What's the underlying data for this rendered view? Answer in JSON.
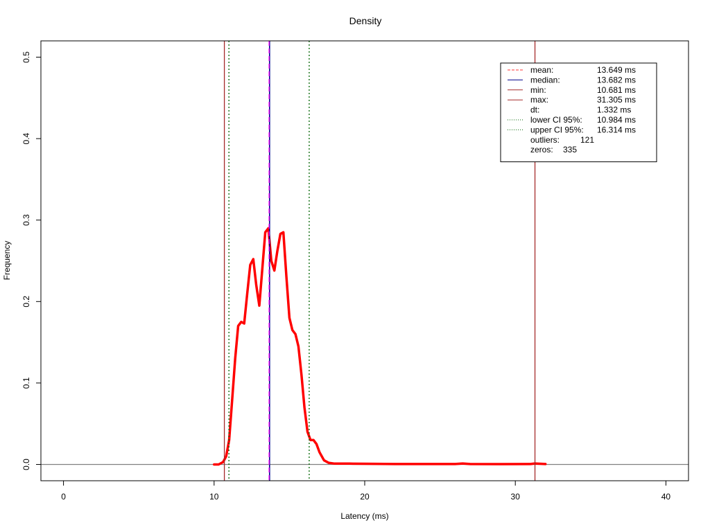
{
  "chart_data": {
    "type": "line",
    "title": "Density",
    "xlabel": "Latency (ms)",
    "ylabel": "Frequency",
    "xlim": [
      -1.5,
      41.5
    ],
    "ylim": [
      -0.02,
      0.52
    ],
    "x_ticks": [
      0,
      10,
      20,
      30,
      40
    ],
    "y_ticks": [
      0.0,
      0.1,
      0.2,
      0.3,
      0.4,
      0.5
    ],
    "x_tick_labels": [
      "0",
      "10",
      "20",
      "30",
      "40"
    ],
    "y_tick_labels": [
      "0.0",
      "0.1",
      "0.2",
      "0.3",
      "0.4",
      "0.5"
    ],
    "grid": false,
    "baseline": 0,
    "density": {
      "color": "#ff0000",
      "x": [
        10.0,
        10.3,
        10.6,
        10.8,
        11.0,
        11.2,
        11.4,
        11.6,
        11.8,
        12.0,
        12.2,
        12.4,
        12.6,
        12.8,
        13.0,
        13.2,
        13.4,
        13.6,
        13.8,
        14.0,
        14.2,
        14.4,
        14.6,
        14.8,
        15.0,
        15.2,
        15.4,
        15.6,
        15.8,
        16.0,
        16.2,
        16.4,
        16.6,
        16.8,
        17.0,
        17.3,
        17.6,
        18.0,
        18.5,
        19.0,
        20.0,
        22.0,
        24.0,
        26.0,
        26.5,
        27.0,
        29.0,
        31.0,
        31.3,
        32.0
      ],
      "y": [
        0.0,
        0.0,
        0.003,
        0.01,
        0.03,
        0.08,
        0.13,
        0.17,
        0.175,
        0.173,
        0.21,
        0.245,
        0.252,
        0.22,
        0.195,
        0.24,
        0.285,
        0.29,
        0.25,
        0.238,
        0.262,
        0.283,
        0.285,
        0.23,
        0.18,
        0.165,
        0.16,
        0.145,
        0.11,
        0.07,
        0.04,
        0.03,
        0.03,
        0.025,
        0.015,
        0.005,
        0.002,
        0.001,
        0.001,
        0.001,
        0.0008,
        0.0005,
        0.0005,
        0.0005,
        0.0012,
        0.0005,
        0.0004,
        0.0005,
        0.0012,
        0.0005
      ]
    },
    "vlines": [
      {
        "name": "min",
        "x": 10.681,
        "color": "#a52a2a",
        "dash": "solid"
      },
      {
        "name": "max",
        "x": 31.305,
        "color": "#a52a2a",
        "dash": "solid"
      },
      {
        "name": "median",
        "x": 13.682,
        "color": "#00008b",
        "dash": "solid"
      },
      {
        "name": "mean",
        "x": 13.649,
        "color": "#ff00ff",
        "dash": "dashed"
      },
      {
        "name": "lower-ci",
        "x": 10.984,
        "color": "#006400",
        "dash": "dotted"
      },
      {
        "name": "upper-ci",
        "x": 16.314,
        "color": "#006400",
        "dash": "dotted"
      }
    ],
    "legend": {
      "position": "top-right",
      "entries": [
        {
          "label": "mean:",
          "value": "13.649 ms",
          "color": "#ff3333",
          "dash": "dashed"
        },
        {
          "label": "median:",
          "value": "13.682 ms",
          "color": "#00008b",
          "dash": "solid"
        },
        {
          "label": "min:",
          "value": "10.681 ms",
          "color": "#a52a2a",
          "dash": "solid"
        },
        {
          "label": "max:",
          "value": "31.305 ms",
          "color": "#a52a2a",
          "dash": "solid"
        },
        {
          "label": "dt:",
          "value": "1.332 ms",
          "color": "",
          "dash": "none"
        },
        {
          "label": "lower CI 95%:",
          "value": "10.984 ms",
          "color": "#006400",
          "dash": "dotted"
        },
        {
          "label": "upper CI 95%:",
          "value": "16.314 ms",
          "color": "#006400",
          "dash": "dotted"
        },
        {
          "label": "outliers:",
          "value": "121",
          "color": "",
          "dash": "none"
        },
        {
          "label": "zeros:",
          "value": "335",
          "color": "",
          "dash": "none"
        }
      ]
    }
  }
}
